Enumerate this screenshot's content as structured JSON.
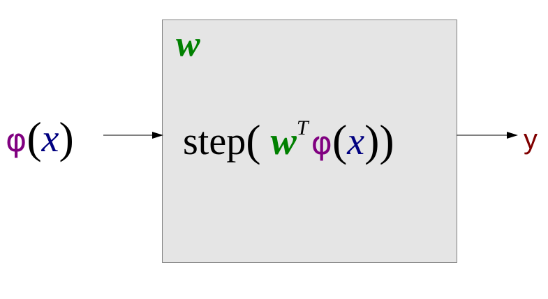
{
  "diagram": {
    "box_label": "w",
    "input": {
      "func": "φ",
      "open": "(",
      "arg": "x",
      "close": ")"
    },
    "function": {
      "name": "step",
      "open": "(",
      "weight": "w",
      "transpose": "T",
      "phi": "φ",
      "open_inner": "(",
      "arg": "x",
      "close_inner": ")",
      "close": ")"
    },
    "output": "y"
  },
  "colors": {
    "weight": "#008000",
    "phi": "#800080",
    "variable": "#000080",
    "output": "#800000",
    "box_fill": "#e5e5e5",
    "box_border": "#7f7f7f",
    "arrow": "#000000"
  }
}
